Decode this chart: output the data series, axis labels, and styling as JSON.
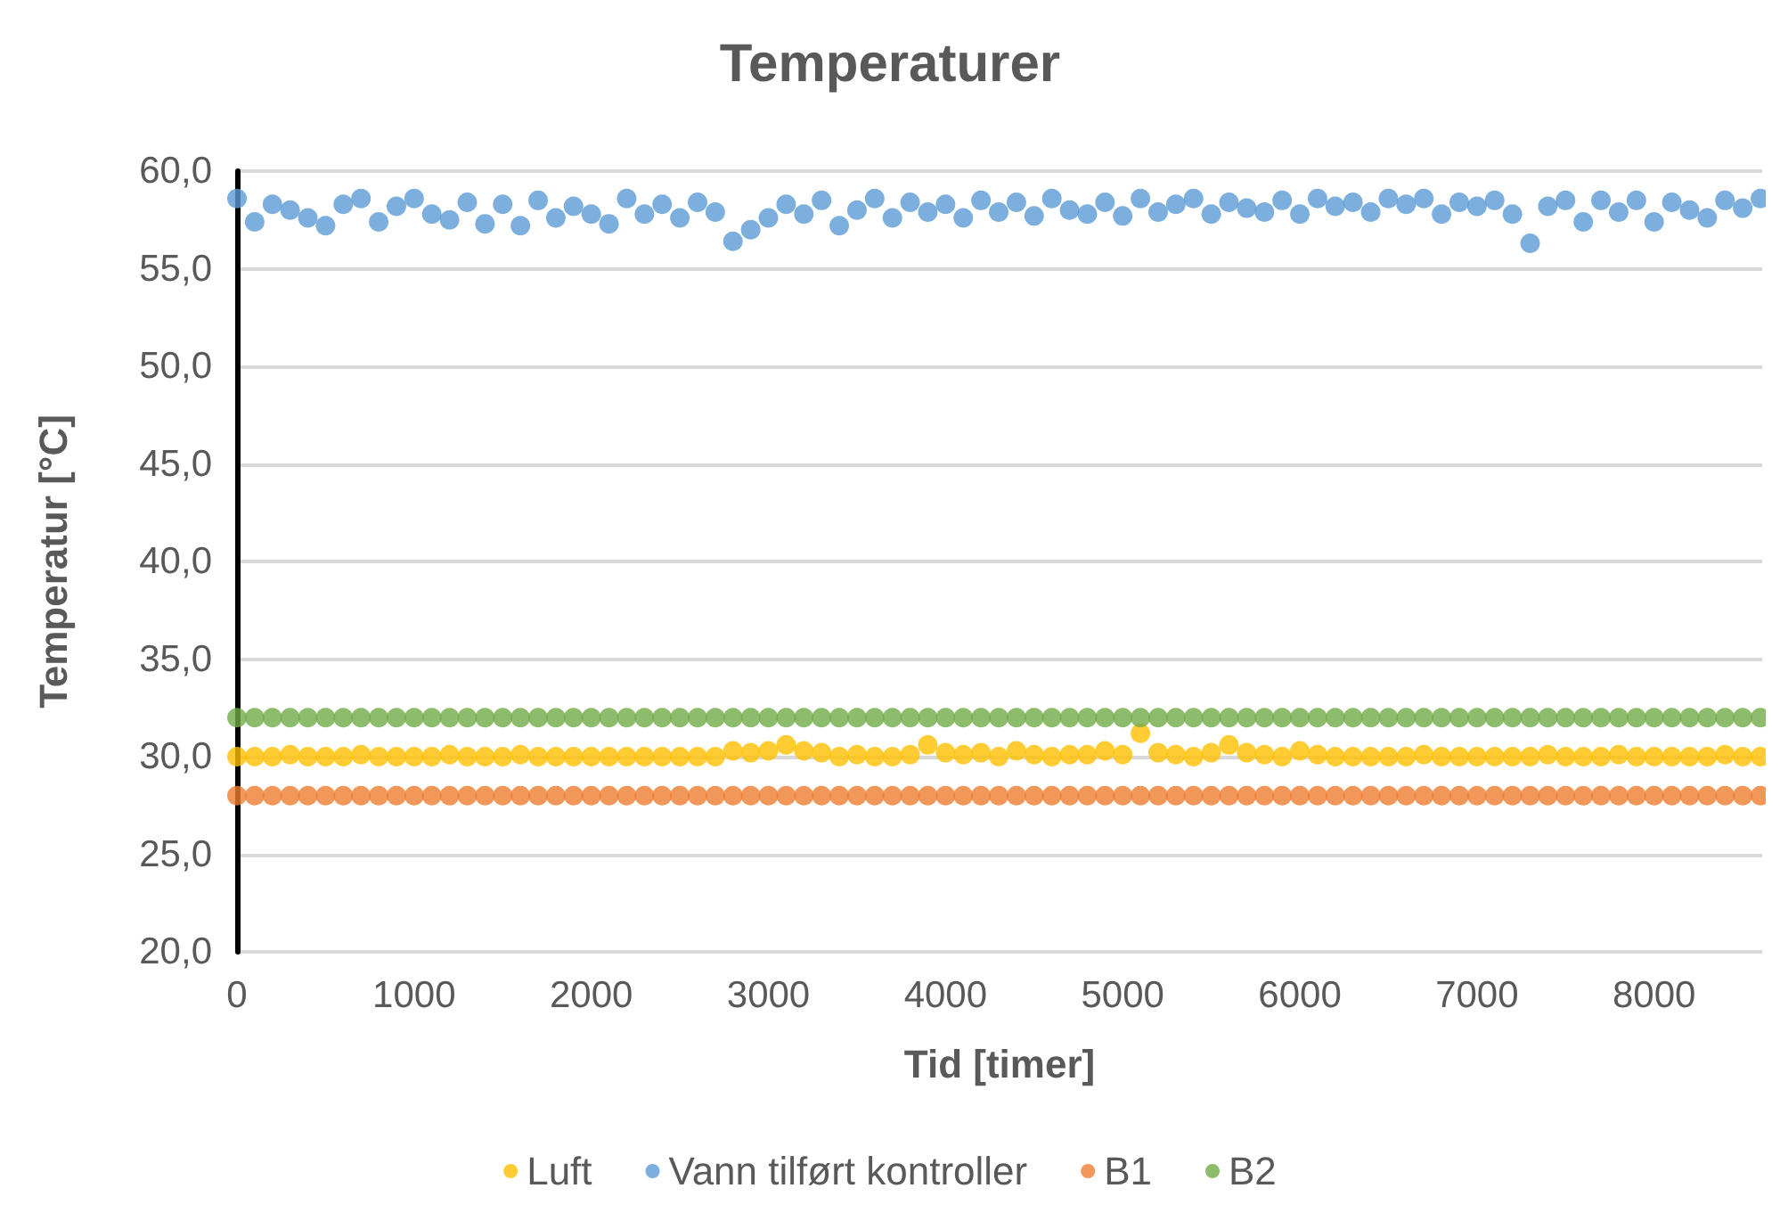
{
  "chart_data": {
    "type": "scatter",
    "title": "Temperaturer",
    "xlabel": "Tid [timer]",
    "ylabel": "Temperatur [°C]",
    "legend": "bottom",
    "grid": "y",
    "marker": "circle",
    "xlim": [
      0,
      8610
    ],
    "xticks": [
      0,
      1000,
      2000,
      3000,
      4000,
      5000,
      6000,
      7000,
      8000
    ],
    "ylim": [
      20,
      60
    ],
    "yticks": [
      {
        "value": 20,
        "label": "20,0"
      },
      {
        "value": 25,
        "label": "25,0"
      },
      {
        "value": 30,
        "label": "30,0"
      },
      {
        "value": 35,
        "label": "35,0"
      },
      {
        "value": 40,
        "label": "40,0"
      },
      {
        "value": 45,
        "label": "45,0"
      },
      {
        "value": 50,
        "label": "50,0"
      },
      {
        "value": 55,
        "label": "55,0"
      },
      {
        "value": 60,
        "label": "60,0"
      }
    ],
    "x": [
      0,
      100,
      200,
      300,
      400,
      500,
      600,
      700,
      800,
      900,
      1000,
      1100,
      1200,
      1300,
      1400,
      1500,
      1600,
      1700,
      1800,
      1900,
      2000,
      2100,
      2200,
      2300,
      2400,
      2500,
      2600,
      2700,
      2800,
      2900,
      3000,
      3100,
      3200,
      3300,
      3400,
      3500,
      3600,
      3700,
      3800,
      3900,
      4000,
      4100,
      4200,
      4300,
      4400,
      4500,
      4600,
      4700,
      4800,
      4900,
      5000,
      5100,
      5200,
      5300,
      5400,
      5500,
      5600,
      5700,
      5800,
      5900,
      6000,
      6100,
      6200,
      6300,
      6400,
      6500,
      6600,
      6700,
      6800,
      6900,
      7000,
      7100,
      7200,
      7300,
      7400,
      7500,
      7600,
      7700,
      7800,
      7900,
      8000,
      8100,
      8200,
      8300,
      8400,
      8500,
      8600
    ],
    "series": [
      {
        "name": "Luft",
        "color": "#ffc000",
        "values": [
          30.0,
          30.0,
          30.0,
          30.1,
          30.0,
          30.0,
          30.0,
          30.1,
          30.0,
          30.0,
          30.0,
          30.0,
          30.1,
          30.0,
          30.0,
          30.0,
          30.1,
          30.0,
          30.0,
          30.0,
          30.0,
          30.0,
          30.0,
          30.0,
          30.0,
          30.0,
          30.0,
          30.0,
          30.3,
          30.2,
          30.3,
          30.6,
          30.3,
          30.2,
          30.0,
          30.1,
          30.0,
          30.0,
          30.1,
          30.6,
          30.2,
          30.1,
          30.2,
          30.0,
          30.3,
          30.1,
          30.0,
          30.1,
          30.1,
          30.3,
          30.1,
          31.2,
          30.2,
          30.1,
          30.0,
          30.2,
          30.6,
          30.2,
          30.1,
          30.0,
          30.3,
          30.1,
          30.0,
          30.0,
          30.0,
          30.0,
          30.0,
          30.1,
          30.0,
          30.0,
          30.0,
          30.0,
          30.0,
          30.0,
          30.1,
          30.0,
          30.0,
          30.0,
          30.1,
          30.0,
          30.0,
          30.0,
          30.0,
          30.0,
          30.1,
          30.0,
          30.0
        ]
      },
      {
        "name": "Vann tilført kontroller",
        "color": "#5b9bd5",
        "values": [
          58.6,
          57.4,
          58.3,
          58.0,
          57.6,
          57.2,
          58.3,
          58.6,
          57.4,
          58.2,
          58.6,
          57.8,
          57.5,
          58.4,
          57.3,
          58.3,
          57.2,
          58.5,
          57.6,
          58.2,
          57.8,
          57.3,
          58.6,
          57.8,
          58.3,
          57.6,
          58.4,
          57.9,
          56.4,
          57.0,
          57.6,
          58.3,
          57.8,
          58.5,
          57.2,
          58.0,
          58.6,
          57.6,
          58.4,
          57.9,
          58.3,
          57.6,
          58.5,
          57.9,
          58.4,
          57.7,
          58.6,
          58.0,
          57.8,
          58.4,
          57.7,
          58.6,
          57.9,
          58.3,
          58.6,
          57.8,
          58.4,
          58.1,
          57.9,
          58.5,
          57.8,
          58.6,
          58.2,
          58.4,
          57.9,
          58.6,
          58.3,
          58.6,
          57.8,
          58.4,
          58.2,
          58.5,
          57.8,
          56.3,
          58.2,
          58.5,
          57.4,
          58.5,
          57.9,
          58.5,
          57.4,
          58.4,
          58.0,
          57.6,
          58.5,
          58.1,
          58.6
        ]
      },
      {
        "name": "B1",
        "color": "#ed7d31",
        "values": [
          28,
          28,
          28,
          28,
          28,
          28,
          28,
          28,
          28,
          28,
          28,
          28,
          28,
          28,
          28,
          28,
          28,
          28,
          28,
          28,
          28,
          28,
          28,
          28,
          28,
          28,
          28,
          28,
          28,
          28,
          28,
          28,
          28,
          28,
          28,
          28,
          28,
          28,
          28,
          28,
          28,
          28,
          28,
          28,
          28,
          28,
          28,
          28,
          28,
          28,
          28,
          28,
          28,
          28,
          28,
          28,
          28,
          28,
          28,
          28,
          28,
          28,
          28,
          28,
          28,
          28,
          28,
          28,
          28,
          28,
          28,
          28,
          28,
          28,
          28,
          28,
          28,
          28,
          28,
          28,
          28,
          28,
          28,
          28,
          28,
          28,
          28
        ]
      },
      {
        "name": "B2",
        "color": "#70ad47",
        "values": [
          32,
          32,
          32,
          32,
          32,
          32,
          32,
          32,
          32,
          32,
          32,
          32,
          32,
          32,
          32,
          32,
          32,
          32,
          32,
          32,
          32,
          32,
          32,
          32,
          32,
          32,
          32,
          32,
          32,
          32,
          32,
          32,
          32,
          32,
          32,
          32,
          32,
          32,
          32,
          32,
          32,
          32,
          32,
          32,
          32,
          32,
          32,
          32,
          32,
          32,
          32,
          32,
          32,
          32,
          32,
          32,
          32,
          32,
          32,
          32,
          32,
          32,
          32,
          32,
          32,
          32,
          32,
          32,
          32,
          32,
          32,
          32,
          32,
          32,
          32,
          32,
          32,
          32,
          32,
          32,
          32,
          32,
          32,
          32,
          32,
          32,
          32
        ]
      }
    ]
  }
}
